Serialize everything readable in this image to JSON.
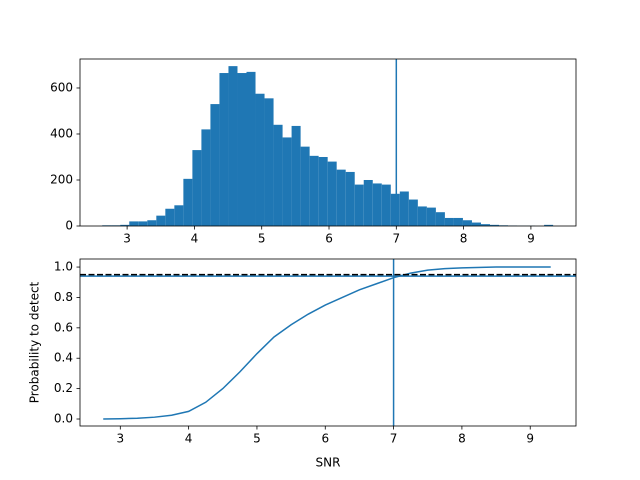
{
  "chart_data": [
    {
      "type": "histogram",
      "bins": [
        2.63,
        2.764,
        2.898,
        3.032,
        3.166,
        3.3,
        3.434,
        3.568,
        3.702,
        3.836,
        3.97,
        4.104,
        4.238,
        4.372,
        4.506,
        4.64,
        4.774,
        4.908,
        5.042,
        5.176,
        5.31,
        5.444,
        5.578,
        5.712,
        5.846,
        5.98,
        6.114,
        6.248,
        6.382,
        6.516,
        6.65,
        6.784,
        6.918,
        7.052,
        7.186,
        7.32,
        7.454,
        7.588,
        7.722,
        7.856,
        7.99,
        8.124,
        8.258,
        8.392,
        8.526,
        8.66,
        8.794,
        8.928,
        9.062,
        9.196,
        9.33
      ],
      "counts": [
        3,
        3,
        5,
        20,
        20,
        25,
        45,
        75,
        90,
        205,
        330,
        420,
        530,
        665,
        695,
        665,
        670,
        575,
        555,
        440,
        385,
        435,
        345,
        305,
        300,
        280,
        245,
        235,
        180,
        200,
        185,
        180,
        140,
        150,
        115,
        85,
        80,
        60,
        35,
        35,
        25,
        15,
        8,
        5,
        3,
        2,
        1,
        1,
        0,
        5
      ],
      "color": "#1f77b4",
      "xlim": [
        2.3,
        9.67
      ],
      "ylim": [
        0,
        726
      ],
      "xticks": [
        3,
        4,
        5,
        6,
        7,
        8,
        9
      ],
      "yticks": [
        0,
        200,
        400,
        600
      ],
      "vlines": [
        {
          "value": 7,
          "color": "#1f77b4",
          "style": "solid"
        }
      ]
    },
    {
      "type": "line",
      "xlabel": "SNR",
      "ylabel": "Probability to detect",
      "x": [
        2.75,
        3,
        3.25,
        3.5,
        3.75,
        4,
        4.25,
        4.5,
        4.75,
        5,
        5.25,
        5.5,
        5.75,
        6,
        6.25,
        6.5,
        6.75,
        7,
        7.25,
        7.5,
        7.75,
        8,
        8.5,
        9,
        9.3
      ],
      "values": [
        0,
        0.002,
        0.005,
        0.012,
        0.025,
        0.05,
        0.11,
        0.2,
        0.31,
        0.43,
        0.54,
        0.62,
        0.69,
        0.75,
        0.8,
        0.85,
        0.89,
        0.93,
        0.96,
        0.98,
        0.99,
        0.995,
        1,
        1,
        1
      ],
      "color": "#1f77b4",
      "xlim": [
        2.41,
        9.67
      ],
      "ylim": [
        -0.046,
        1.053
      ],
      "xticks": [
        3,
        4,
        5,
        6,
        7,
        8,
        9
      ],
      "yticks": [
        {
          "value": 0,
          "label": "0.0"
        },
        0.2,
        0.4,
        0.6,
        0.8,
        {
          "value": 1,
          "label": "1.0"
        }
      ],
      "hlines": [
        {
          "value": 0.94,
          "color": "#1f77b4",
          "style": "solid"
        },
        {
          "value": 0.95,
          "color": "#000000",
          "style": "dashed"
        }
      ],
      "vlines": [
        {
          "value": 7,
          "color": "#1f77b4",
          "style": "solid"
        }
      ]
    }
  ]
}
